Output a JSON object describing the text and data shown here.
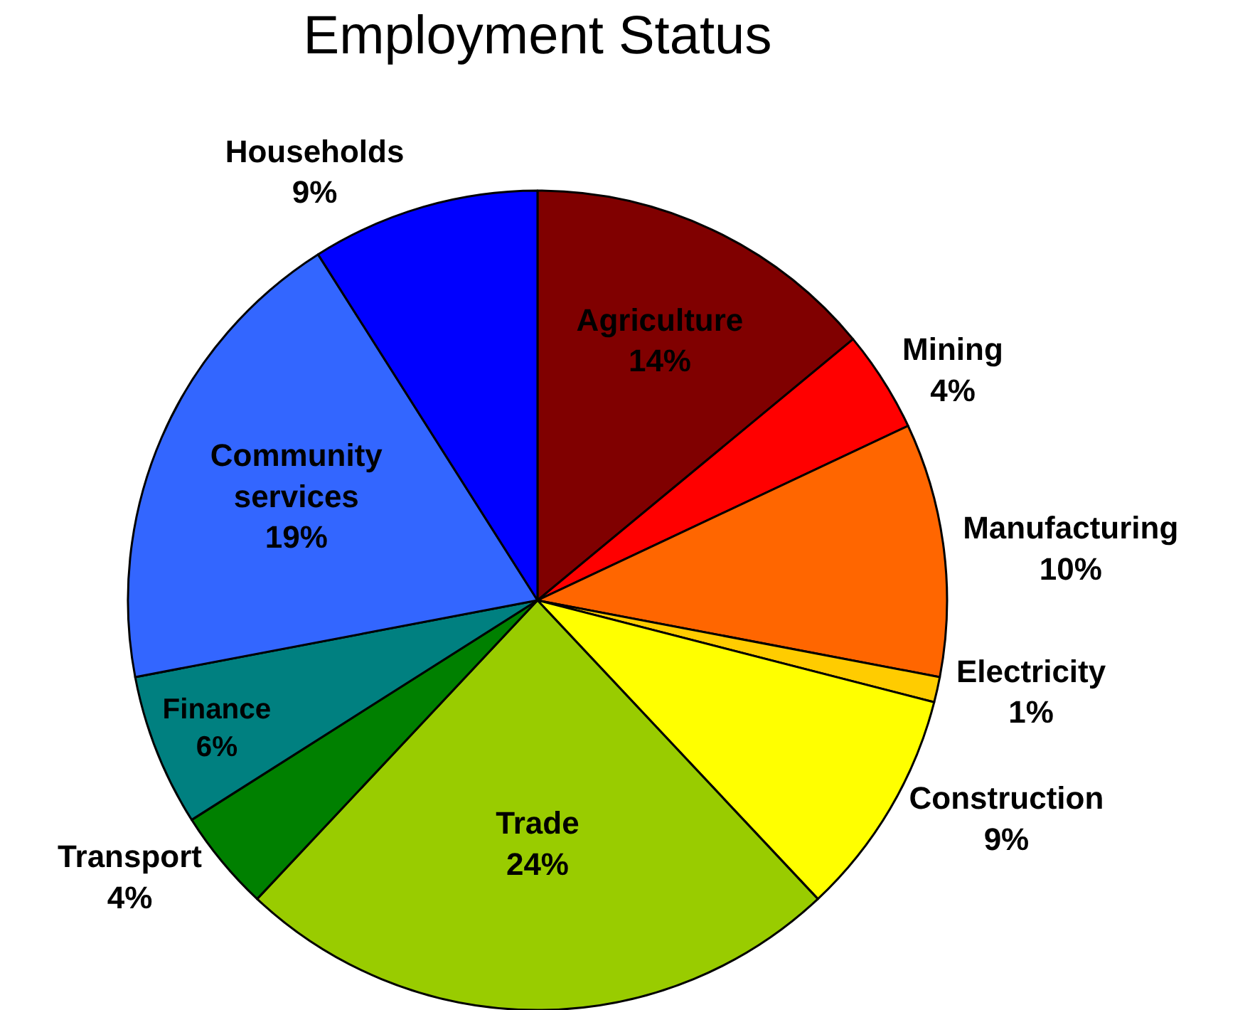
{
  "chart_data": {
    "type": "pie",
    "title": "Employment Status",
    "categories": [
      "Agriculture",
      "Mining",
      "Manufacturing",
      "Electricity",
      "Construction",
      "Trade",
      "Transport",
      "Finance",
      "Community services",
      "Households"
    ],
    "values": [
      14,
      4,
      10,
      1,
      9,
      24,
      4,
      6,
      19,
      9
    ],
    "value_labels": [
      "14%",
      "4%",
      "10%",
      "1%",
      "9%",
      "24%",
      "4%",
      "6%",
      "19%",
      "9%"
    ],
    "colors": [
      "#800000",
      "#ff0000",
      "#ff6600",
      "#ffcc00",
      "#ffff00",
      "#99cc00",
      "#008000",
      "#008080",
      "#3366ff",
      "#0000ff"
    ],
    "legend": false
  }
}
